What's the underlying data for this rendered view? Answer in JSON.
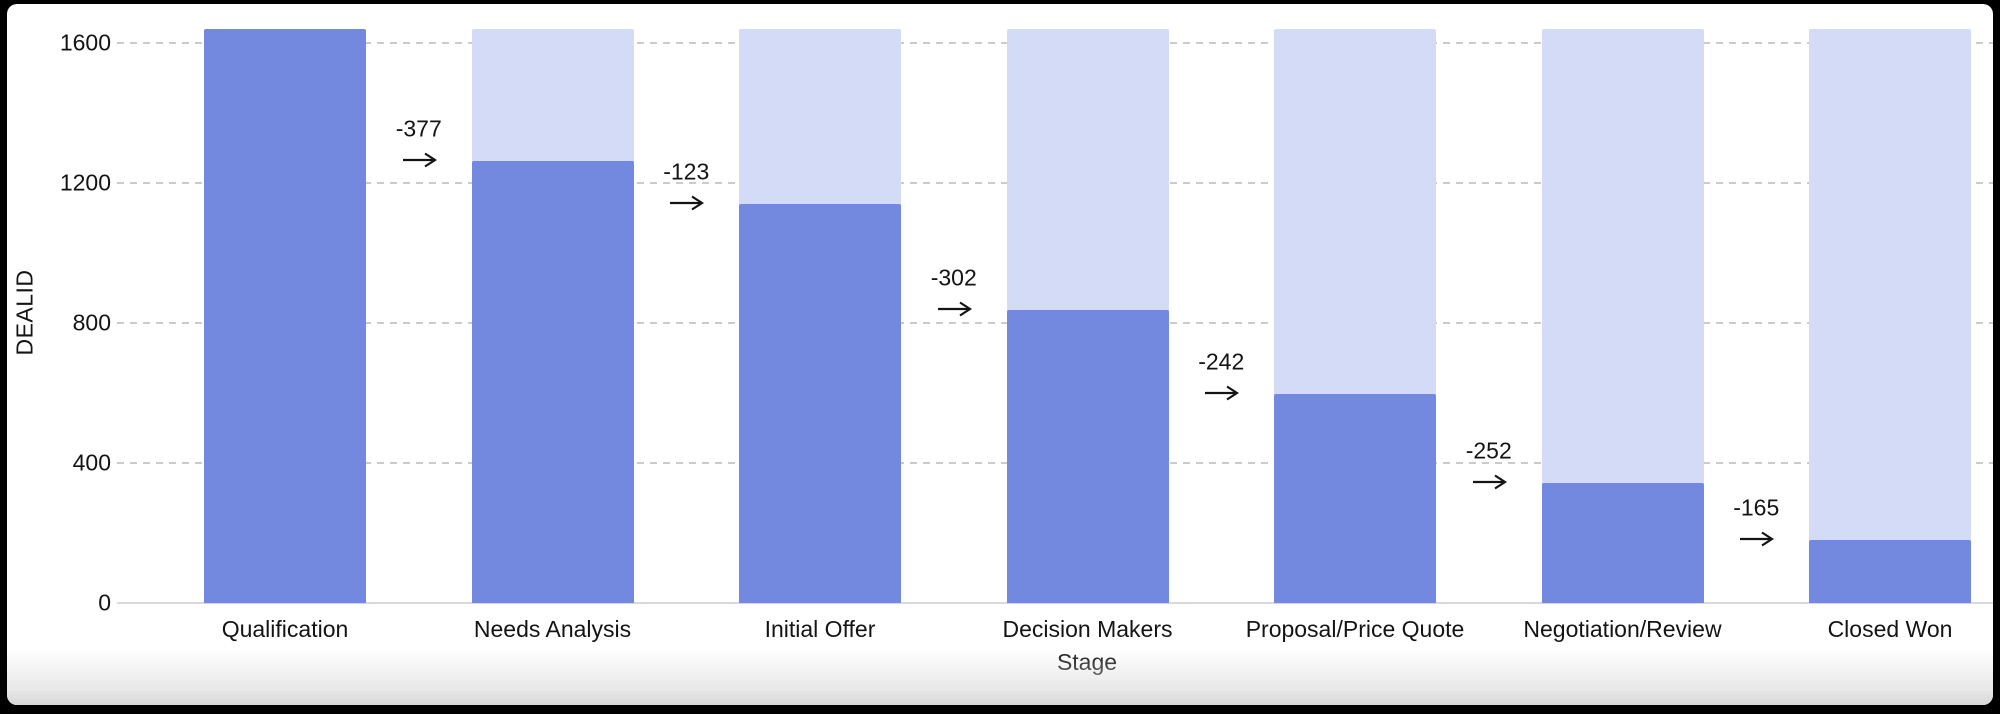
{
  "chart_data": {
    "type": "bar",
    "subtype": "funnel",
    "title": "",
    "xlabel": "Stage",
    "ylabel": "DEALID",
    "categories": [
      "Qualification",
      "Needs Analysis",
      "Initial Offer",
      "Decision Makers",
      "Proposal/Price Quote",
      "Negotiation/Review",
      "Closed Won"
    ],
    "values": [
      1640,
      1263,
      1140,
      838,
      596,
      344,
      179
    ],
    "deltas": [
      -377,
      -123,
      -302,
      -242,
      -252,
      -165
    ],
    "y_ticks": [
      0,
      400,
      800,
      1200,
      1600
    ],
    "ylim": [
      0,
      1650
    ],
    "grid": "horizontal-dashed",
    "legend": "none",
    "colors": {
      "bar": "#7389e0",
      "bar_track": "#d3dbf7",
      "gridline": "#cbcbcb",
      "baseline": "#d9d9d9",
      "text": "#141414",
      "background": "#ffffff",
      "frame": "#000000"
    }
  }
}
